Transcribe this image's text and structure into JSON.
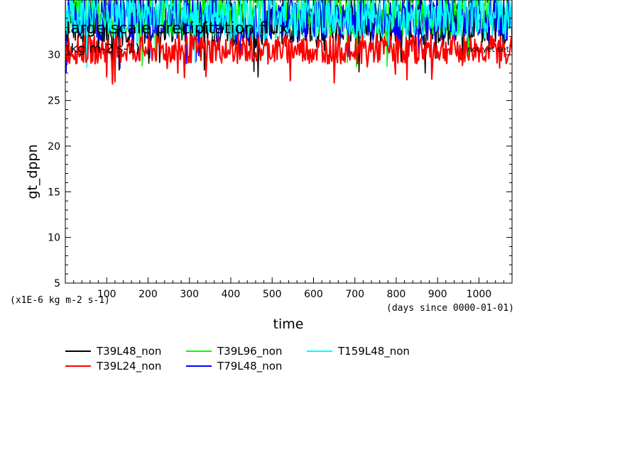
{
  "chart_data": {
    "type": "line",
    "title": "large scale precipitation flux",
    "subtitle": "(kg m-2 s-1)",
    "note": "not yet set",
    "xlabel": "time",
    "ylabel": "gt_dppn",
    "x_unit_note": "(days since 0000-01-01)",
    "y_unit_note": "(x1E-6 kg m-2 s-1)",
    "xlim": [
      0,
      1080
    ],
    "ylim": [
      5,
      36
    ],
    "x_ticks": [
      100,
      200,
      300,
      400,
      500,
      600,
      700,
      800,
      900,
      1000
    ],
    "y_ticks": [
      5,
      10,
      15,
      20,
      25,
      30
    ],
    "grid": false,
    "legend_position": "bottom",
    "series": [
      {
        "name": "T39L48_non",
        "color": "#000000",
        "mean": 33.5,
        "amplitude": 2.5,
        "x_range": [
          0,
          1080
        ]
      },
      {
        "name": "T39L24_non",
        "color": "#ff0000",
        "mean": 30.6,
        "amplitude": 1.6,
        "x_range": [
          0,
          1080
        ]
      },
      {
        "name": "T39L96_non",
        "color": "#00ff00",
        "mean": 34.5,
        "amplitude": 2.5,
        "x_range": [
          0,
          1080
        ]
      },
      {
        "name": "T79L48_non",
        "color": "#0000ff",
        "mean": 34.0,
        "amplitude": 2.5,
        "x_range": [
          0,
          1080
        ]
      },
      {
        "name": "T159L48_non",
        "color": "#00ffff",
        "mean": 34.2,
        "amplitude": 2.5,
        "x_range": [
          0,
          1080
        ]
      }
    ]
  }
}
